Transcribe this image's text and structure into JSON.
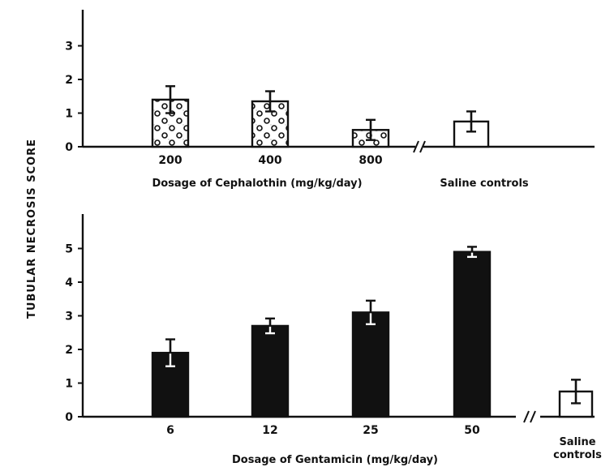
{
  "ylabel": "TUBULAR NECROSIS SCORE",
  "chart_data": [
    {
      "type": "bar",
      "xlabel": "Dosage of Cephalothin (mg/kg/day)",
      "ylabel": "TUBULAR NECROSIS SCORE",
      "ylim": [
        0,
        4
      ],
      "yticks": [
        0,
        1,
        2,
        3
      ],
      "categories": [
        "200",
        "400",
        "800"
      ],
      "values": [
        1.4,
        1.35,
        0.5
      ],
      "errors": [
        0.4,
        0.3,
        0.3
      ],
      "bar_pattern": "dotted",
      "control": {
        "label": "Saline controls",
        "value": 0.75,
        "error": 0.3
      }
    },
    {
      "type": "bar",
      "xlabel": "Dosage of Gentamicin (mg/kg/day)",
      "ylabel": "TUBULAR NECROSIS SCORE",
      "ylim": [
        0,
        6
      ],
      "yticks": [
        0,
        1,
        2,
        3,
        4,
        5
      ],
      "categories": [
        "6",
        "12",
        "25",
        "50"
      ],
      "values": [
        1.9,
        2.7,
        3.1,
        4.9
      ],
      "errors": [
        0.4,
        0.22,
        0.35,
        0.15
      ],
      "bar_pattern": "solid",
      "control": {
        "label_lines": [
          "Saline",
          "controls"
        ],
        "value": 0.75,
        "error": 0.35
      }
    }
  ],
  "colors": {
    "ink": "#111111",
    "paper": "#ffffff"
  }
}
